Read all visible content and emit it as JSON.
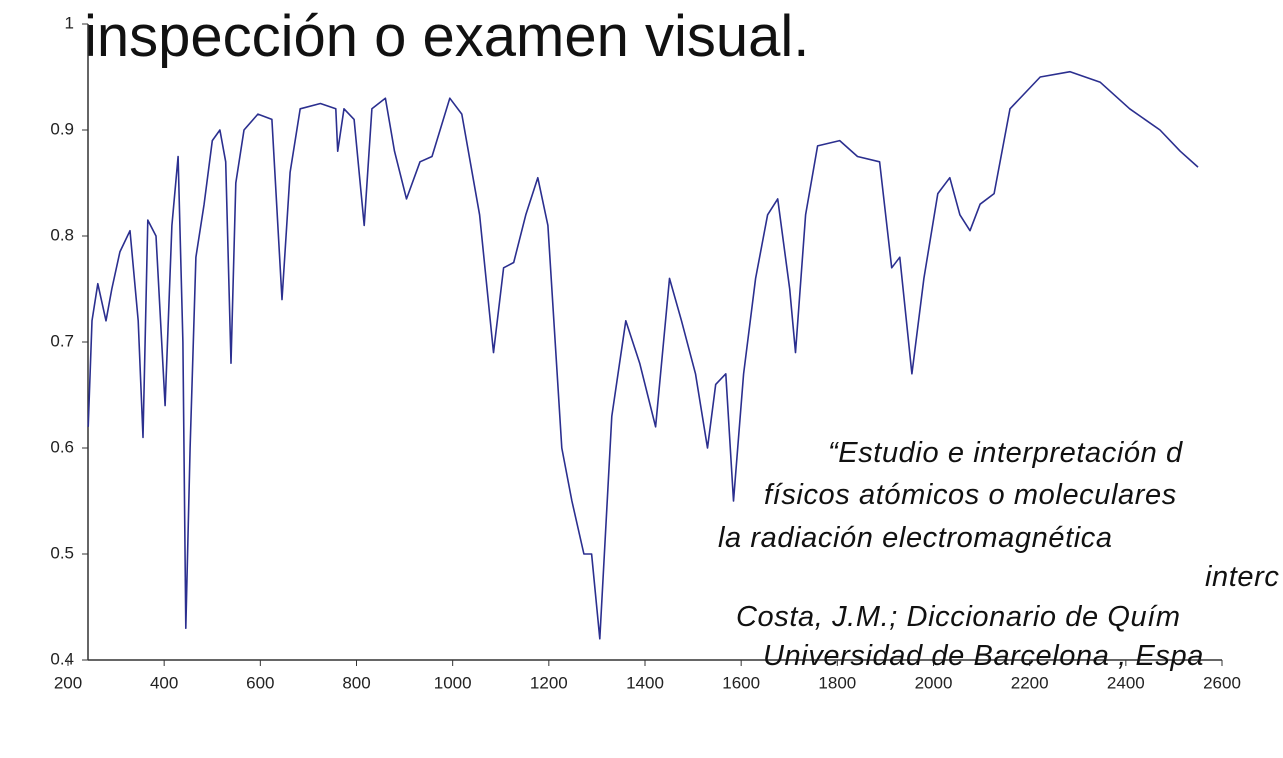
{
  "chart_data": {
    "type": "line",
    "title": "inspección o examen visual.",
    "annotations": [
      "“Estudio e interpretación d",
      "físicos atómicos o moleculares",
      "la radiación electromagnética",
      "interc",
      "Costa, J.M.; Diccionario de Quím",
      "Universidad de Barcelona , Espa"
    ],
    "x": [
      242,
      250,
      262,
      279,
      291,
      308,
      329,
      346,
      356,
      366,
      383,
      402,
      416,
      429,
      439,
      445,
      454,
      466,
      483,
      500,
      516,
      528,
      539,
      549,
      566,
      595,
      624,
      645,
      662,
      683,
      725,
      757,
      761,
      774,
      795,
      816,
      832,
      860,
      879,
      904,
      932,
      957,
      994,
      1019,
      1056,
      1085,
      1106,
      1127,
      1152,
      1177,
      1198,
      1227,
      1248,
      1273,
      1289,
      1306,
      1331,
      1360,
      1389,
      1422,
      1451,
      1476,
      1505,
      1530,
      1547,
      1568,
      1584,
      1605,
      1630,
      1655,
      1676,
      1701,
      1713,
      1734,
      1759,
      1805,
      1842,
      1888,
      1913,
      1930,
      1955,
      1980,
      2009,
      2034,
      2055,
      2076,
      2097,
      2126,
      2159,
      2222,
      2284,
      2347,
      2408,
      2471,
      2513,
      2550
    ],
    "series": [
      {
        "color": "#2b2f8f",
        "values": [
          0.62,
          0.72,
          0.755,
          0.72,
          0.75,
          0.785,
          0.805,
          0.72,
          0.61,
          0.815,
          0.8,
          0.64,
          0.81,
          0.875,
          0.7,
          0.43,
          0.6,
          0.78,
          0.83,
          0.89,
          0.9,
          0.87,
          0.68,
          0.85,
          0.9,
          0.915,
          0.91,
          0.74,
          0.86,
          0.92,
          0.925,
          0.92,
          0.88,
          0.92,
          0.91,
          0.81,
          0.92,
          0.93,
          0.88,
          0.835,
          0.87,
          0.875,
          0.93,
          0.915,
          0.82,
          0.69,
          0.77,
          0.775,
          0.82,
          0.855,
          0.81,
          0.6,
          0.55,
          0.5,
          0.5,
          0.42,
          0.63,
          0.72,
          0.68,
          0.62,
          0.76,
          0.72,
          0.67,
          0.6,
          0.66,
          0.67,
          0.55,
          0.67,
          0.76,
          0.82,
          0.835,
          0.75,
          0.69,
          0.82,
          0.885,
          0.89,
          0.875,
          0.87,
          0.77,
          0.78,
          0.67,
          0.76,
          0.84,
          0.855,
          0.82,
          0.805,
          0.83,
          0.84,
          0.92,
          0.95,
          0.955,
          0.945,
          0.92,
          0.9,
          0.88,
          0.865
        ]
      }
    ],
    "xlim": [
      200,
      2600
    ],
    "ylim": [
      0.4,
      1
    ],
    "xticks": [
      200,
      400,
      600,
      800,
      1000,
      1200,
      1400,
      1600,
      1800,
      2000,
      2200,
      2400,
      2600
    ],
    "yticks": [
      0.4,
      0.5,
      0.6,
      0.7,
      0.8,
      0.9,
      1
    ]
  }
}
